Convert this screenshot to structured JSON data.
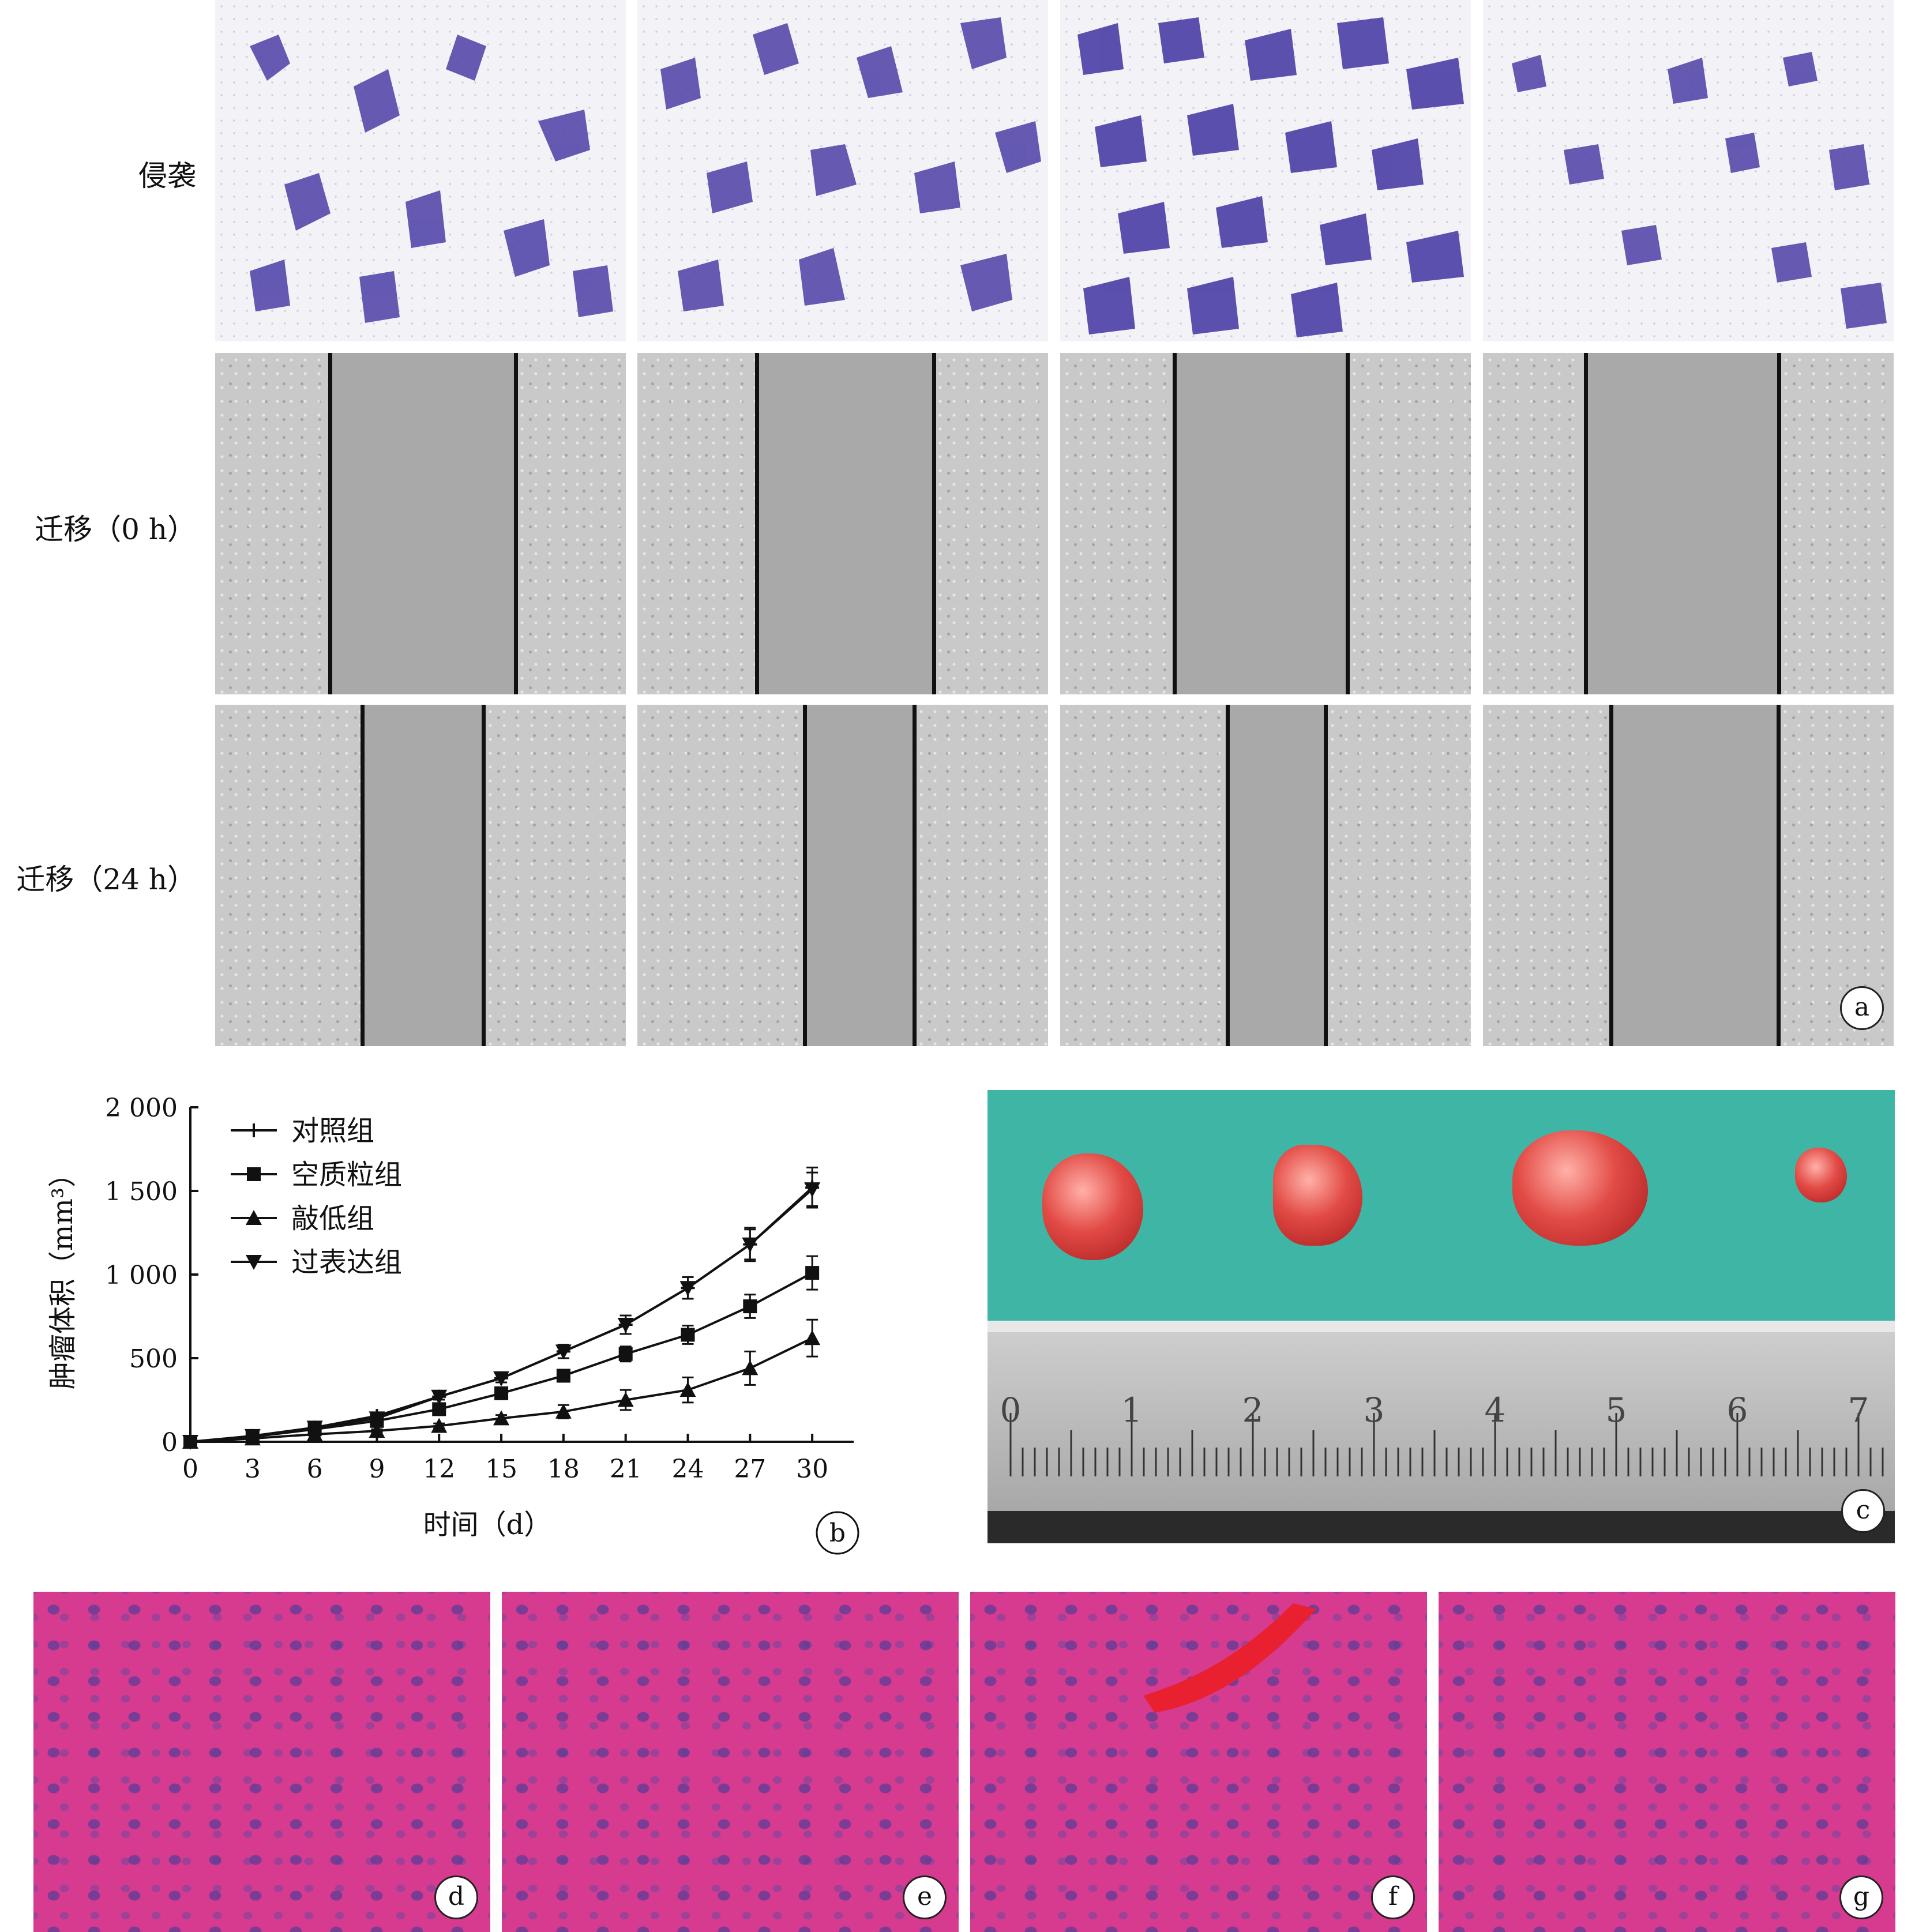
{
  "row_labels": {
    "invasion": "侵袭",
    "migration_0h": "迁移（0 h）",
    "migration_24h": "迁移（24 h）"
  },
  "panel_labels": {
    "a": "a",
    "b": "b",
    "c": "c",
    "d": "d",
    "e": "e",
    "f": "f",
    "g": "g"
  },
  "ruler_numbers": [
    "0",
    "1",
    "2",
    "3",
    "4",
    "5",
    "6",
    "7"
  ],
  "chart_data": {
    "type": "line",
    "xlabel": "时间（d）",
    "ylabel": "肿瘤体积（mm³）",
    "x": [
      0,
      3,
      6,
      9,
      12,
      15,
      18,
      21,
      24,
      27,
      30
    ],
    "xticks": [
      "0",
      "3",
      "6",
      "9",
      "12",
      "15",
      "18",
      "21",
      "24",
      "27",
      "30"
    ],
    "yticks": [
      "0",
      "500",
      "1 000",
      "1 500",
      "2 000"
    ],
    "ylim": [
      0,
      2000
    ],
    "xlim": [
      0,
      32
    ],
    "legend_position": "top-left",
    "series": [
      {
        "name": "对照组",
        "marker": "plus",
        "values": [
          0,
          35,
          85,
          155,
          270,
          380,
          540,
          700,
          920,
          1180,
          1520
        ],
        "errors": [
          0,
          10,
          12,
          15,
          18,
          25,
          40,
          55,
          65,
          100,
          120
        ]
      },
      {
        "name": "空质粒组",
        "marker": "square",
        "values": [
          0,
          30,
          75,
          125,
          195,
          290,
          395,
          525,
          640,
          810,
          1010
        ],
        "errors": [
          0,
          8,
          10,
          14,
          18,
          22,
          35,
          45,
          55,
          70,
          100
        ]
      },
      {
        "name": "敲低组",
        "marker": "triangle-up",
        "values": [
          0,
          20,
          45,
          65,
          95,
          140,
          180,
          250,
          310,
          440,
          620
        ],
        "errors": [
          0,
          6,
          8,
          10,
          15,
          20,
          40,
          60,
          75,
          100,
          110
        ]
      },
      {
        "name": "过表达组",
        "marker": "triangle-down",
        "values": [
          0,
          35,
          85,
          140,
          270,
          380,
          540,
          700,
          920,
          1180,
          1510
        ],
        "errors": [
          0,
          8,
          10,
          14,
          18,
          25,
          40,
          55,
          65,
          90,
          100
        ]
      }
    ]
  }
}
